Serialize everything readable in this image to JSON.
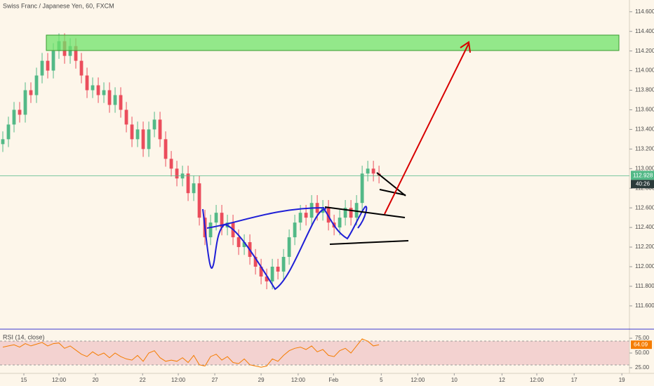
{
  "chart_data": {
    "type": "candlestick",
    "title": "Swiss Franc / Japanese Yen, 60, FXCM",
    "up_color": "#53b987",
    "down_color": "#eb4d5c",
    "xlim": [
      -0.5,
      111.6
    ],
    "xticks": [
      {
        "value": 3.75,
        "label": "15"
      },
      {
        "value": 10,
        "label": "12:00"
      },
      {
        "value": 16.5,
        "label": "20"
      },
      {
        "value": 24.9,
        "label": "22"
      },
      {
        "value": 31.25,
        "label": "12:00"
      },
      {
        "value": 37.75,
        "label": "27"
      },
      {
        "value": 46,
        "label": "29"
      },
      {
        "value": 52.6,
        "label": "12:00"
      },
      {
        "value": 58.9,
        "label": "Feb"
      },
      {
        "value": 67.4,
        "label": "5"
      },
      {
        "value": 73.9,
        "label": "12:00"
      },
      {
        "value": 80.4,
        "label": "10"
      },
      {
        "value": 88.9,
        "label": "12"
      },
      {
        "value": 95.1,
        "label": "12:00"
      },
      {
        "value": 101.75,
        "label": "17"
      },
      {
        "value": 110.25,
        "label": "19"
      }
    ],
    "ylim": [
      111.37,
      114.72
    ],
    "yticks": [
      {
        "value": 114.6,
        "label": "114.600"
      },
      {
        "value": 114.4,
        "label": "114.400"
      },
      {
        "value": 114.2,
        "label": "114.200"
      },
      {
        "value": 114.0,
        "label": "114.000"
      },
      {
        "value": 113.8,
        "label": "113.800"
      },
      {
        "value": 113.6,
        "label": "113.600"
      },
      {
        "value": 113.4,
        "label": "113.400"
      },
      {
        "value": 113.2,
        "label": "113.200"
      },
      {
        "value": 113.0,
        "label": "113.000"
      },
      {
        "value": 112.8,
        "label": "112.800"
      },
      {
        "value": 112.6,
        "label": "112.600"
      },
      {
        "value": 112.4,
        "label": "112.400"
      },
      {
        "value": 112.2,
        "label": "112.200"
      },
      {
        "value": 112.0,
        "label": "112.000"
      },
      {
        "value": 111.8,
        "label": "111.800"
      },
      {
        "value": 111.6,
        "label": "111.600"
      }
    ],
    "open": [
      113.25,
      113.3,
      113.45,
      113.6,
      113.55,
      113.8,
      113.75,
      113.95,
      114.1,
      114.0,
      114.2,
      114.3,
      114.15,
      114.25,
      114.1,
      113.95,
      113.8,
      113.85,
      113.75,
      113.8,
      113.65,
      113.75,
      113.6,
      113.45,
      113.3,
      113.4,
      113.2,
      113.4,
      113.5,
      113.3,
      113.1,
      113.0,
      112.9,
      112.95,
      112.75,
      112.85,
      112.5,
      112.3,
      112.45,
      112.55,
      112.4,
      112.45,
      112.3,
      112.2,
      112.25,
      112.1,
      112.0,
      111.9,
      111.85,
      112.0,
      111.95,
      112.1,
      112.3,
      112.45,
      112.55,
      112.5,
      112.65,
      112.55,
      112.6,
      112.45,
      112.4,
      112.5,
      112.6,
      112.5,
      112.65,
      112.95,
      113.0,
      112.95
    ],
    "high": [
      113.38,
      113.53,
      113.68,
      113.68,
      113.88,
      113.88,
      114.03,
      114.18,
      114.18,
      114.28,
      114.38,
      114.38,
      114.33,
      114.33,
      114.18,
      114.03,
      113.93,
      113.93,
      113.88,
      113.88,
      113.83,
      113.83,
      113.68,
      113.53,
      113.48,
      113.48,
      113.48,
      113.58,
      113.58,
      113.38,
      113.18,
      113.08,
      113.03,
      113.03,
      112.93,
      112.93,
      112.58,
      112.53,
      112.63,
      112.63,
      112.53,
      112.53,
      112.38,
      112.33,
      112.33,
      112.18,
      112.08,
      111.98,
      112.08,
      112.08,
      112.18,
      112.38,
      112.53,
      112.63,
      112.63,
      112.73,
      112.73,
      112.68,
      112.68,
      112.53,
      112.58,
      112.68,
      112.68,
      112.73,
      113.03,
      113.08,
      113.08,
      113.03
    ],
    "low": [
      113.17,
      113.22,
      113.37,
      113.47,
      113.47,
      113.67,
      113.67,
      113.87,
      113.92,
      113.92,
      114.12,
      114.07,
      114.07,
      114.02,
      113.87,
      113.72,
      113.72,
      113.67,
      113.67,
      113.57,
      113.57,
      113.52,
      113.37,
      113.22,
      113.22,
      113.12,
      113.12,
      113.32,
      113.22,
      113.02,
      112.92,
      112.82,
      112.82,
      112.67,
      112.67,
      112.42,
      112.22,
      112.22,
      112.37,
      112.32,
      112.32,
      112.22,
      112.12,
      112.12,
      112.02,
      111.92,
      111.82,
      111.77,
      111.77,
      111.87,
      111.87,
      112.02,
      112.22,
      112.37,
      112.42,
      112.42,
      112.47,
      112.47,
      112.37,
      112.32,
      112.32,
      112.42,
      112.42,
      112.42,
      112.57,
      112.87,
      112.87,
      112.85
    ],
    "close": [
      113.3,
      113.45,
      113.6,
      113.55,
      113.8,
      113.75,
      113.95,
      114.1,
      114.0,
      114.2,
      114.3,
      114.15,
      114.25,
      114.1,
      113.95,
      113.8,
      113.85,
      113.75,
      113.8,
      113.65,
      113.75,
      113.6,
      113.45,
      113.3,
      113.4,
      113.2,
      113.4,
      113.5,
      113.3,
      113.1,
      113.0,
      112.9,
      112.95,
      112.75,
      112.85,
      112.5,
      112.3,
      112.45,
      112.55,
      112.4,
      112.45,
      112.3,
      112.2,
      112.25,
      112.1,
      112.0,
      111.9,
      111.85,
      112.0,
      111.95,
      112.1,
      112.3,
      112.45,
      112.55,
      112.5,
      112.65,
      112.55,
      112.6,
      112.45,
      112.4,
      112.5,
      112.6,
      112.5,
      112.65,
      112.95,
      113.0,
      112.95,
      112.928
    ],
    "last_price_label": "112.928",
    "countdown": "40:26",
    "rsi": {
      "label": "RSI (14, close)",
      "color": "#f57c00",
      "ylim": [
        15.5,
        89.3
      ],
      "yticks": [
        {
          "value": 75,
          "label": "75.00"
        },
        {
          "value": 50,
          "label": "50.00"
        },
        {
          "value": 25,
          "label": "25.00"
        }
      ],
      "values": [
        60,
        62,
        64,
        60,
        66,
        62,
        65,
        68,
        62,
        66,
        67,
        58,
        62,
        55,
        48,
        44,
        52,
        46,
        50,
        42,
        50,
        44,
        40,
        38,
        46,
        36,
        50,
        54,
        42,
        36,
        38,
        36,
        42,
        34,
        46,
        30,
        28,
        44,
        48,
        38,
        44,
        34,
        32,
        40,
        30,
        28,
        26,
        28,
        40,
        36,
        46,
        54,
        58,
        60,
        56,
        62,
        52,
        56,
        46,
        44,
        54,
        58,
        50,
        62,
        74,
        70,
        62,
        64.09
      ],
      "last_label": "64.09"
    }
  }
}
